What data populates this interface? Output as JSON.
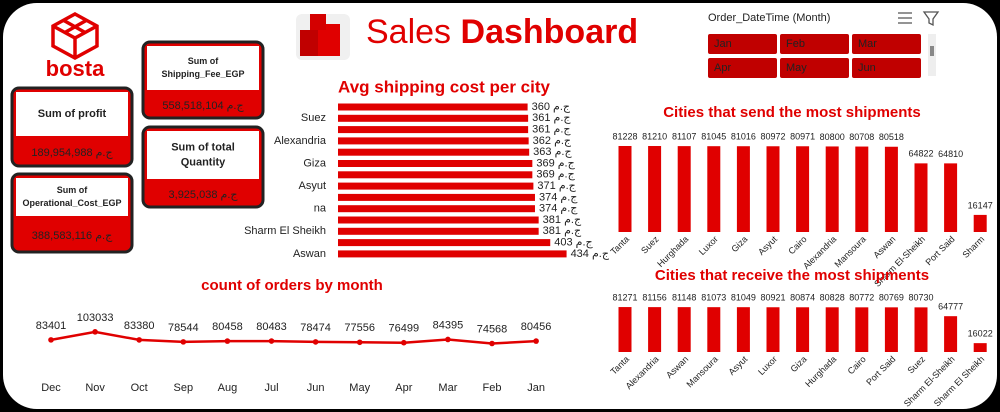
{
  "header": {
    "logo": "bosta",
    "title_regular": "Sales",
    "title_bold": "Dashboard"
  },
  "kpis": [
    {
      "label": [
        "Sum of  profit"
      ],
      "value": "189,954,988 ج.م"
    },
    {
      "label": [
        "Sum of",
        "Operational_Cost_EGP"
      ],
      "value": "388,583,116 ج.م"
    },
    {
      "label": [
        "Sum of",
        "Shipping_Fee_EGP"
      ],
      "value": "558,518,104 ج.م"
    },
    {
      "label": [
        "Sum of total",
        "Quantity"
      ],
      "value": "3,925,038 ج.م"
    }
  ],
  "slicer": {
    "title": "Order_DateTime (Month)",
    "items": [
      "Jan",
      "Feb",
      "Mar",
      "Apr",
      "May",
      "Jun"
    ]
  },
  "chart_data": [
    {
      "type": "hbar",
      "title": "Avg shipping cost per city",
      "color": "#e00000",
      "categories": [
        null,
        "Suez",
        null,
        "Alexandria",
        null,
        "Giza",
        null,
        "Asyut",
        null,
        "na",
        null,
        "Sharm El Sheikh",
        null,
        "Aswan"
      ],
      "values": [
        360,
        361,
        361,
        362,
        363,
        369,
        369,
        371,
        374,
        374,
        381,
        381,
        403,
        434
      ],
      "value_labels": [
        "360 ج.م",
        "361 ج.م",
        "361 ج.م",
        "362 ج.م",
        "363 ج.م",
        "369 ج.م",
        "369 ج.م",
        "371 ج.م",
        "374 ج.م",
        "374 ج.م",
        "381 ج.م",
        "381 ج.م",
        "403 ج.م",
        "434 ج.م"
      ],
      "xlim": [
        0,
        450
      ]
    },
    {
      "type": "line",
      "title": "count of orders by month",
      "color": "#e00000",
      "categories": [
        "Dec",
        "Nov",
        "Oct",
        "Sep",
        "Aug",
        "Jul",
        "Jun",
        "May",
        "Apr",
        "Mar",
        "Feb",
        "Jan"
      ],
      "values": [
        83401,
        103033,
        83380,
        78544,
        80458,
        80483,
        78474,
        77556,
        76499,
        84395,
        74568,
        80456
      ],
      "ylim": [
        0,
        110000
      ]
    },
    {
      "type": "bar",
      "title": "Cities that send the most shipments",
      "color": "#e00000",
      "categories": [
        "Tanta",
        "Suez",
        "Hurghada",
        "Luxor",
        "Giza",
        "Asyut",
        "Cairo",
        "Alexandria",
        "Mansoura",
        "Aswan",
        "Sharm El-Sheikh",
        "Port Said",
        "Sharm"
      ],
      "values": [
        81228,
        81210,
        81107,
        81045,
        81016,
        80972,
        80971,
        80800,
        80708,
        80518,
        64822,
        64810,
        16147
      ],
      "ylim": [
        0,
        85000
      ]
    },
    {
      "type": "bar",
      "title": "Cities that receive the most shipments",
      "color": "#e00000",
      "categories": [
        "Tanta",
        "Alexandria",
        "Aswan",
        "Mansoura",
        "Asyut",
        "Luxor",
        "Giza",
        "Hurghada",
        "Cairo",
        "Port Said",
        "Suez",
        "Sharm El-Sheikh",
        "Sharm El Sheikh"
      ],
      "values": [
        81271,
        81156,
        81148,
        81073,
        81049,
        80921,
        80874,
        80828,
        80772,
        80769,
        80730,
        64777,
        16022
      ],
      "ylim": [
        0,
        85000
      ]
    }
  ]
}
